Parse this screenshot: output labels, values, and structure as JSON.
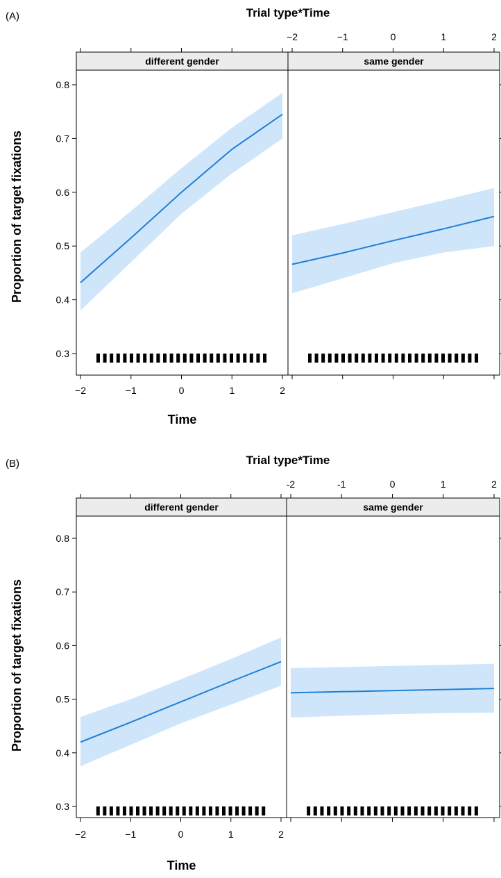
{
  "chart_data": [
    {
      "type": "line",
      "panel_label": "(A)",
      "title": "Trial type*Time",
      "xlabel": "Time",
      "ylabel": "Proportion of target fixations",
      "xlim": [
        -2,
        2
      ],
      "ylim": [
        0.3,
        0.8
      ],
      "x_ticks": [
        "−2",
        "−1",
        "0",
        "1",
        "2"
      ],
      "y_ticks": [
        "0.3",
        "0.4",
        "0.5",
        "0.6",
        "0.7",
        "0.8"
      ],
      "rug_present": true,
      "line_color": "#1f7fd6",
      "band_color": "#cfe5fa",
      "series": [
        {
          "name": "different gender",
          "x": [
            -2,
            -1,
            0,
            1,
            2
          ],
          "y": [
            0.432,
            0.515,
            0.6,
            0.68,
            0.745
          ],
          "lower": [
            0.38,
            0.47,
            0.56,
            0.635,
            0.7
          ],
          "upper": [
            0.488,
            0.565,
            0.645,
            0.72,
            0.785
          ]
        },
        {
          "name": "same gender",
          "x": [
            -2,
            -1,
            0,
            1,
            2
          ],
          "y": [
            0.466,
            0.487,
            0.51,
            0.532,
            0.555
          ],
          "lower": [
            0.412,
            0.44,
            0.468,
            0.488,
            0.5
          ],
          "upper": [
            0.52,
            0.541,
            0.563,
            0.585,
            0.608
          ]
        }
      ]
    },
    {
      "type": "line",
      "panel_label": "(B)",
      "title": "Trial type*Time",
      "xlabel": "Time",
      "ylabel": "Proportion of target fixations",
      "xlim": [
        -2,
        2
      ],
      "ylim": [
        0.3,
        0.8
      ],
      "x_ticks": [
        "−2",
        "−1",
        "0",
        "1",
        "2"
      ],
      "top_x_ticks": [
        "-2",
        "-1",
        "0",
        "1",
        "2"
      ],
      "y_ticks": [
        "0.3",
        "0.4",
        "0.5",
        "0.6",
        "0.7",
        "0.8"
      ],
      "rug_present": true,
      "line_color": "#1f7fd6",
      "band_color": "#cfe5fa",
      "series": [
        {
          "name": "different gender",
          "x": [
            -2,
            -1,
            0,
            1,
            2
          ],
          "y": [
            0.42,
            0.457,
            0.495,
            0.533,
            0.57
          ],
          "lower": [
            0.375,
            0.415,
            0.455,
            0.49,
            0.525
          ],
          "upper": [
            0.467,
            0.5,
            0.537,
            0.575,
            0.615
          ]
        },
        {
          "name": "same gender",
          "x": [
            -2,
            -1,
            0,
            1,
            2
          ],
          "y": [
            0.512,
            0.514,
            0.516,
            0.518,
            0.52
          ],
          "lower": [
            0.466,
            0.469,
            0.472,
            0.474,
            0.475
          ],
          "upper": [
            0.558,
            0.56,
            0.562,
            0.564,
            0.566
          ]
        }
      ]
    }
  ]
}
